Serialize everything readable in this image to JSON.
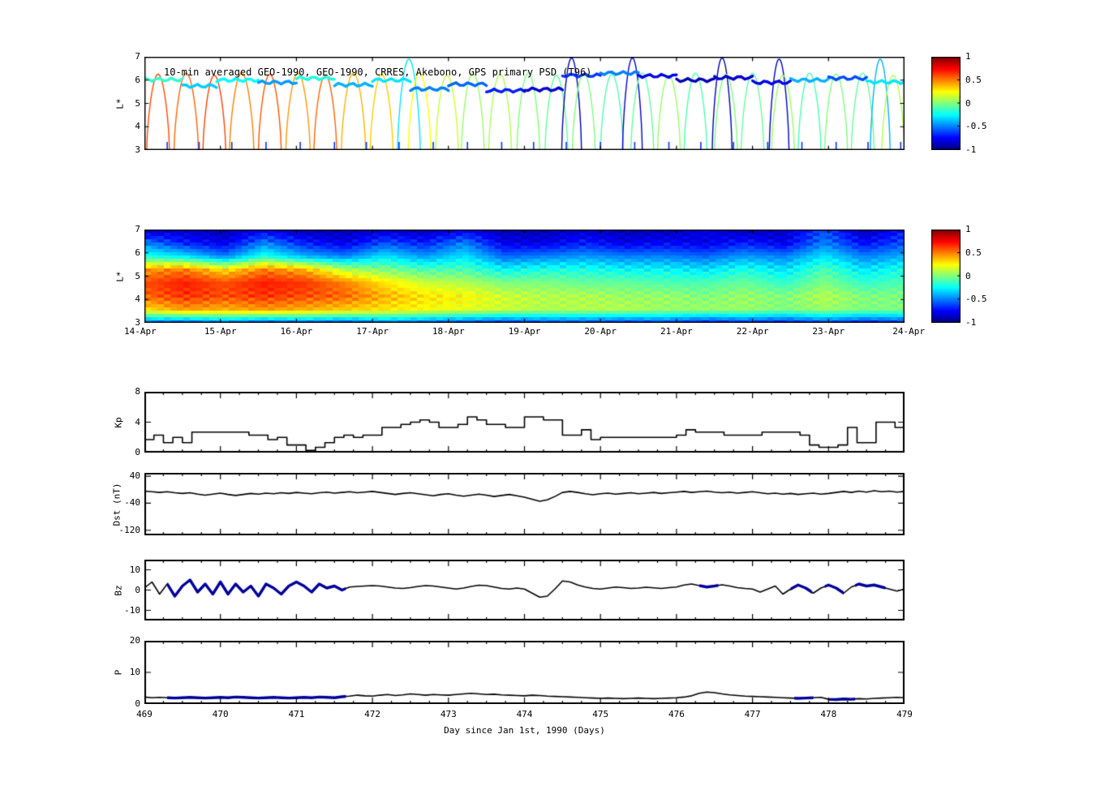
{
  "figure": {
    "title": "10-min averaged GEO-1990, GEO-1990, CRRES, Akebono, GPS  primary PSD (T96)",
    "colors": {
      "background": "#ffffff",
      "axis": "#000000",
      "line": "#000000",
      "overlay": "#000099"
    }
  },
  "panels": {
    "psd_scatter": {
      "ylabel": "L*",
      "yticks": [
        3,
        4,
        5,
        6,
        7
      ],
      "ylim": [
        3,
        7
      ]
    },
    "psd_map": {
      "ylabel": "L*",
      "yticks": [
        3,
        4,
        5,
        6,
        7
      ],
      "ylim": [
        3,
        7
      ],
      "xtick_labels": [
        "14-Apr",
        "15-Apr",
        "16-Apr",
        "17-Apr",
        "18-Apr",
        "19-Apr",
        "20-Apr",
        "21-Apr",
        "22-Apr",
        "23-Apr",
        "24-Apr"
      ]
    },
    "kp": {
      "ylabel": "Kp",
      "yticks": [
        0,
        4,
        8
      ],
      "ylim": [
        0,
        8
      ]
    },
    "dst": {
      "ylabel": "Dst (nT)",
      "yticks": [
        -120,
        -40,
        40
      ],
      "ylim": [
        -135,
        50
      ]
    },
    "bz": {
      "ylabel": "Bz",
      "yticks": [
        -10,
        0,
        10
      ],
      "ylim": [
        -15,
        15
      ]
    },
    "p": {
      "ylabel": "P",
      "yticks": [
        0,
        10,
        20
      ],
      "ylim": [
        0,
        20
      ]
    }
  },
  "xaxis": {
    "label": "Day since Jan 1st, 1990 (Days)",
    "ticks": [
      469,
      470,
      471,
      472,
      473,
      474,
      475,
      476,
      477,
      478,
      479
    ],
    "lim": [
      469,
      479
    ],
    "minor_step": 0.25
  },
  "colorbar": {
    "ticks": [
      "1",
      "0.5",
      "0",
      "-0.5",
      "-1"
    ],
    "lim": [
      -1,
      1
    ]
  },
  "chart_data": [
    {
      "name": "psd_scatter",
      "type": "scatter",
      "xlim": [
        469,
        479
      ],
      "ylim": [
        3,
        7
      ],
      "geo_band": [
        [
          0.0,
          0.5,
          6.02,
          -0.15
        ],
        [
          0.5,
          0.95,
          5.75,
          -0.35
        ],
        [
          0.95,
          1.5,
          6.0,
          -0.25
        ],
        [
          1.5,
          2.0,
          5.9,
          -0.45
        ],
        [
          2.0,
          2.5,
          6.08,
          -0.2
        ],
        [
          2.5,
          3.0,
          5.8,
          -0.4
        ],
        [
          3.0,
          3.5,
          6.0,
          -0.3
        ],
        [
          3.5,
          4.0,
          5.62,
          -0.5
        ],
        [
          4.0,
          4.5,
          5.82,
          -0.55
        ],
        [
          4.5,
          5.0,
          5.55,
          -0.7
        ],
        [
          5.0,
          5.5,
          5.6,
          -0.85
        ],
        [
          5.5,
          6.0,
          6.2,
          -0.65
        ],
        [
          6.0,
          6.5,
          6.3,
          -0.5
        ],
        [
          6.5,
          7.0,
          6.18,
          -0.8
        ],
        [
          7.0,
          7.5,
          6.0,
          -0.9
        ],
        [
          7.5,
          8.0,
          6.1,
          -0.85
        ],
        [
          8.0,
          8.5,
          5.9,
          -0.8
        ],
        [
          8.5,
          9.0,
          6.0,
          -0.4
        ],
        [
          9.0,
          9.5,
          6.08,
          -0.6
        ],
        [
          9.5,
          10.0,
          5.92,
          -0.3
        ]
      ],
      "orbit_arcs": [
        [
          0.18,
          0.3,
          6.25,
          0.6
        ],
        [
          0.55,
          0.32,
          6.3,
          0.55
        ],
        [
          0.92,
          0.3,
          6.2,
          0.62
        ],
        [
          1.28,
          0.32,
          6.3,
          0.5
        ],
        [
          1.65,
          0.3,
          6.25,
          0.58
        ],
        [
          2.02,
          0.32,
          6.3,
          0.45
        ],
        [
          2.38,
          0.3,
          6.2,
          0.55
        ],
        [
          2.75,
          0.32,
          6.3,
          0.4
        ],
        [
          3.12,
          0.3,
          6.25,
          0.35
        ],
        [
          3.48,
          0.3,
          6.9,
          -0.3
        ],
        [
          3.62,
          0.3,
          6.3,
          0.25
        ],
        [
          3.98,
          0.3,
          6.2,
          0.15
        ],
        [
          4.32,
          0.3,
          6.3,
          0.05
        ],
        [
          4.68,
          0.3,
          6.25,
          0.1
        ],
        [
          5.05,
          0.3,
          6.3,
          0.0
        ],
        [
          5.42,
          0.3,
          6.2,
          -0.05
        ],
        [
          5.62,
          0.26,
          6.95,
          -0.9
        ],
        [
          5.78,
          0.3,
          6.3,
          0.0
        ],
        [
          6.15,
          0.3,
          6.25,
          -0.1
        ],
        [
          6.42,
          0.26,
          6.95,
          -0.85
        ],
        [
          6.55,
          0.3,
          6.3,
          -0.05
        ],
        [
          6.9,
          0.3,
          6.2,
          0.05
        ],
        [
          7.25,
          0.3,
          6.3,
          -0.1
        ],
        [
          7.6,
          0.26,
          6.95,
          -0.9
        ],
        [
          7.65,
          0.3,
          6.25,
          0.0
        ],
        [
          8.0,
          0.3,
          6.3,
          -0.05
        ],
        [
          8.35,
          0.26,
          6.9,
          -0.85
        ],
        [
          8.4,
          0.3,
          6.2,
          0.05
        ],
        [
          8.75,
          0.3,
          6.3,
          -0.1
        ],
        [
          9.1,
          0.3,
          6.25,
          0.0
        ],
        [
          9.45,
          0.3,
          6.3,
          -0.05
        ],
        [
          9.68,
          0.26,
          6.9,
          -0.4
        ],
        [
          9.85,
          0.3,
          6.2,
          0.1
        ]
      ],
      "low_l_ticks": [
        0.3,
        0.72,
        1.15,
        1.6,
        2.05,
        2.5,
        2.92,
        3.35,
        3.8,
        4.25,
        4.7,
        5.12,
        5.55,
        6.0,
        6.45,
        6.9,
        7.32,
        7.75,
        8.2,
        8.65,
        9.1,
        9.52,
        9.95
      ],
      "low_l_tick_value": -0.65
    },
    {
      "name": "psd_map",
      "type": "heatmap",
      "x_range": [
        469,
        479
      ],
      "y_range": [
        3,
        7
      ],
      "rows_top_to_bottom": [
        [
          -0.9,
          -0.85,
          -0.9,
          -0.8,
          -0.9,
          -0.9,
          -0.85,
          -0.9,
          -0.8,
          -0.9,
          -0.9,
          -0.85,
          -0.9,
          -0.9,
          -0.8,
          -0.9,
          -0.85,
          -0.6,
          -0.9,
          -0.7
        ],
        [
          -0.5,
          -0.7,
          -0.8,
          -0.5,
          -0.7,
          -0.8,
          -0.6,
          -0.7,
          -0.5,
          -0.8,
          -0.8,
          -0.7,
          -0.8,
          -0.75,
          -0.8,
          -0.7,
          -0.8,
          -0.5,
          -0.75,
          -0.6
        ],
        [
          -0.2,
          -0.3,
          -0.5,
          -0.2,
          -0.4,
          -0.5,
          -0.3,
          -0.45,
          -0.3,
          -0.55,
          -0.5,
          -0.45,
          -0.5,
          -0.5,
          -0.55,
          -0.45,
          -0.5,
          -0.3,
          -0.5,
          -0.4
        ],
        [
          0.45,
          0.5,
          0.3,
          0.5,
          0.4,
          0.1,
          0.0,
          -0.1,
          -0.1,
          -0.25,
          -0.2,
          -0.2,
          -0.25,
          -0.25,
          -0.3,
          -0.2,
          -0.3,
          -0.1,
          -0.3,
          -0.2
        ],
        [
          0.6,
          0.7,
          0.6,
          0.7,
          0.65,
          0.5,
          0.3,
          0.15,
          0.1,
          0.0,
          0.0,
          -0.05,
          -0.05,
          -0.1,
          -0.1,
          -0.05,
          -0.15,
          0.0,
          -0.15,
          -0.1
        ],
        [
          0.55,
          0.65,
          0.6,
          0.65,
          0.6,
          0.55,
          0.4,
          0.3,
          0.25,
          0.15,
          0.1,
          0.1,
          0.05,
          0.05,
          0.0,
          0.05,
          0.0,
          0.1,
          0.0,
          0.0
        ],
        [
          0.3,
          0.45,
          0.4,
          0.45,
          0.4,
          0.35,
          0.3,
          0.25,
          0.2,
          0.15,
          0.1,
          0.1,
          0.1,
          0.05,
          0.05,
          0.05,
          0.0,
          0.05,
          0.0,
          0.0
        ],
        [
          -0.55,
          -0.6,
          -0.5,
          -0.6,
          -0.55,
          -0.6,
          -0.5,
          -0.55,
          -0.6,
          -0.65,
          -0.6,
          -0.6,
          -0.65,
          -0.6,
          -0.7,
          -0.65,
          -0.7,
          -0.6,
          -0.7,
          -0.65
        ]
      ]
    },
    {
      "name": "kp",
      "type": "line",
      "step": true,
      "x_start": 469,
      "x_step": 0.125,
      "values": [
        1.7,
        2.3,
        1.3,
        2.0,
        1.3,
        2.7,
        2.7,
        2.7,
        2.7,
        2.7,
        2.7,
        2.3,
        2.3,
        1.7,
        2.0,
        1.0,
        1.0,
        0.3,
        0.7,
        1.3,
        2.0,
        2.3,
        2.0,
        2.3,
        2.3,
        3.3,
        3.3,
        3.7,
        4.0,
        4.3,
        4.0,
        3.3,
        3.3,
        3.7,
        4.7,
        4.3,
        3.7,
        3.7,
        3.3,
        3.3,
        4.7,
        4.7,
        4.3,
        4.3,
        2.3,
        2.3,
        3.0,
        1.7,
        2.0,
        2.0,
        2.0,
        2.0,
        2.0,
        2.0,
        2.0,
        2.0,
        2.3,
        3.0,
        2.7,
        2.7,
        2.7,
        2.3,
        2.3,
        2.3,
        2.3,
        2.7,
        2.7,
        2.7,
        2.7,
        2.3,
        1.0,
        0.7,
        0.7,
        1.0,
        3.3,
        1.3,
        1.3,
        4.0,
        4.0,
        3.3
      ]
    },
    {
      "name": "dst",
      "type": "line",
      "step": false,
      "x_start": 469,
      "x_step": 0.1,
      "values": [
        -4,
        -6,
        -8,
        -6,
        -9,
        -11,
        -9,
        -13,
        -16,
        -13,
        -10,
        -14,
        -17,
        -14,
        -11,
        -13,
        -10,
        -12,
        -9,
        -11,
        -8,
        -10,
        -12,
        -9,
        -7,
        -10,
        -8,
        -6,
        -9,
        -7,
        -5,
        -8,
        -11,
        -14,
        -11,
        -9,
        -12,
        -15,
        -18,
        -14,
        -12,
        -16,
        -19,
        -16,
        -13,
        -16,
        -20,
        -17,
        -14,
        -18,
        -22,
        -28,
        -34,
        -30,
        -20,
        -8,
        -5,
        -8,
        -12,
        -15,
        -12,
        -10,
        -13,
        -11,
        -9,
        -12,
        -10,
        -8,
        -11,
        -9,
        -7,
        -5,
        -8,
        -6,
        -4,
        -7,
        -9,
        -7,
        -10,
        -8,
        -6,
        -9,
        -12,
        -10,
        -13,
        -11,
        -14,
        -12,
        -10,
        -13,
        -11,
        -8,
        -5,
        -8,
        -4,
        -7,
        -3,
        -6,
        -4,
        -7,
        -5
      ]
    },
    {
      "name": "bz",
      "type": "line",
      "step": false,
      "x_start": 469,
      "x_step": 0.1,
      "values": [
        1,
        4,
        -2,
        3,
        -3,
        2,
        5,
        -1,
        3,
        -2,
        4,
        -2,
        3,
        -1,
        2,
        -3,
        3,
        1,
        -2,
        2,
        4,
        2,
        -1,
        3,
        1,
        2,
        0,
        1.5,
        1.8,
        2.0,
        2.2,
        2.0,
        1.5,
        1.0,
        0.8,
        1.2,
        1.8,
        2.2,
        2.0,
        1.5,
        1.0,
        0.5,
        1.0,
        1.8,
        2.4,
        2.2,
        1.5,
        0.8,
        0.5,
        1.0,
        0.5,
        -1.5,
        -3.5,
        -3.0,
        0.5,
        4.5,
        4.0,
        2.5,
        1.5,
        0.8,
        0.5,
        1.0,
        1.5,
        1.2,
        0.8,
        1.0,
        1.4,
        1.1,
        0.8,
        1.2,
        1.5,
        2.5,
        3.0,
        2.2,
        1.5,
        2.0,
        2.6,
        2.0,
        1.2,
        0.8,
        0.5,
        -1.0,
        0.5,
        2.0,
        -2.0,
        0.5,
        2.5,
        1.0,
        -1.5,
        1.0,
        2.5,
        1.0,
        -1.5,
        1.5,
        3.0,
        2.0,
        2.5,
        1.5,
        0.5,
        -0.5,
        0.5
      ],
      "overlay_ranges": [
        [
          469.3,
          471.65
        ],
        [
          476.3,
          476.55
        ],
        [
          477.5,
          477.78
        ],
        [
          477.95,
          478.2
        ],
        [
          478.35,
          478.75
        ]
      ]
    },
    {
      "name": "p",
      "type": "line",
      "step": false,
      "x_start": 469,
      "x_step": 0.1,
      "values": [
        2.2,
        2.0,
        2.1,
        2.0,
        1.9,
        2.0,
        2.1,
        2.0,
        1.9,
        2.0,
        2.1,
        2.0,
        2.2,
        2.1,
        2.0,
        1.9,
        2.0,
        2.1,
        2.0,
        1.9,
        2.0,
        2.1,
        2.0,
        2.2,
        2.1,
        2.0,
        2.3,
        2.5,
        2.8,
        2.6,
        2.5,
        2.8,
        3.0,
        2.7,
        2.9,
        3.2,
        3.0,
        2.8,
        3.0,
        2.9,
        2.8,
        3.0,
        3.2,
        3.4,
        3.2,
        3.0,
        3.1,
        2.9,
        2.8,
        2.7,
        2.6,
        2.8,
        2.7,
        2.5,
        2.4,
        2.3,
        2.2,
        2.1,
        2.0,
        1.9,
        1.8,
        1.9,
        1.8,
        1.7,
        1.8,
        1.9,
        1.8,
        1.7,
        1.8,
        1.9,
        2.0,
        2.2,
        2.6,
        3.4,
        3.8,
        3.6,
        3.2,
        2.9,
        2.7,
        2.5,
        2.4,
        2.3,
        2.2,
        2.1,
        2.0,
        1.9,
        1.8,
        1.9,
        2.0,
        2.1,
        1.5,
        1.4,
        1.6,
        1.5,
        1.7,
        1.6,
        1.8,
        1.9,
        2.0,
        2.1,
        2.0
      ],
      "overlay_ranges": [
        [
          469.3,
          471.65
        ],
        [
          477.55,
          477.8
        ],
        [
          478.0,
          478.35
        ]
      ]
    }
  ]
}
